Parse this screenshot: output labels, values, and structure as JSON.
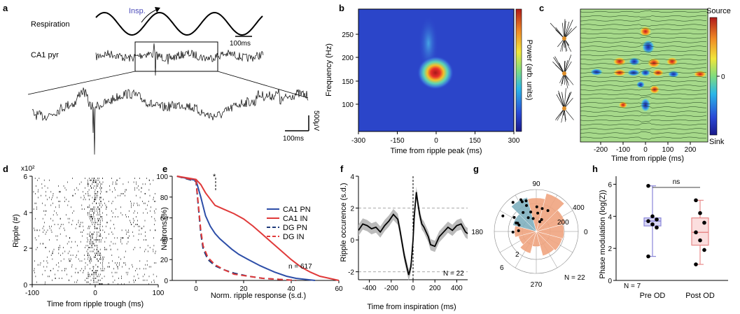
{
  "panels": {
    "a": {
      "letter": "a",
      "respiration_label": "Respiration",
      "insp_label": "Insp.",
      "ca1_label": "CA1 pyr",
      "scale_time_top": "100ms",
      "scale_time_bottom": "100ms",
      "scale_voltage": "500μV"
    },
    "b": {
      "letter": "b",
      "xlabel": "Time from ripple peak (ms)",
      "ylabel": "Frequency (Hz)",
      "colorbar_label": "Power (arb. units)",
      "xticks": [
        "-300",
        "-150",
        "0",
        "150",
        "300"
      ],
      "yticks": [
        "250",
        "200",
        "150",
        "100"
      ]
    },
    "c": {
      "letter": "c",
      "source_label": "Source",
      "sink_label": "Sink",
      "colorbar_zero": "0",
      "xlabel": "Time from ripple (ms)",
      "xticks": [
        "-200",
        "-100",
        "0",
        "100",
        "200"
      ]
    },
    "d": {
      "letter": "d",
      "multiplier": "x10²",
      "ylabel": "Ripple (#)",
      "xlabel": "Time from ripple trough (ms)",
      "xticks": [
        "-100",
        "0",
        "100"
      ],
      "yticks": [
        "6",
        "4",
        "2",
        "0"
      ]
    },
    "e": {
      "letter": "e",
      "ylabel": "Neurons (%)",
      "xlabel": "Norm. ripple response (s.d.)",
      "star": "*",
      "n_label": "n = 617",
      "xticks": [
        "0",
        "20",
        "40",
        "60"
      ],
      "yticks": [
        "100",
        "80",
        "60",
        "40",
        "20",
        "0"
      ]
    },
    "f": {
      "letter": "f",
      "ylabel": "Ripple occurence (s.d.)",
      "xlabel": "Time from inspiration (ms)",
      "n_label": "N = 22",
      "xticks": [
        "-400",
        "-200",
        "0",
        "200",
        "400"
      ],
      "yticks": [
        "4",
        "2",
        "0",
        "-2"
      ]
    },
    "g": {
      "letter": "g",
      "angle_labels": [
        "90",
        "180",
        "270",
        "0"
      ],
      "radial_labels": [
        "400",
        "200",
        "2",
        "6"
      ],
      "n_label": "N = 22"
    },
    "h": {
      "letter": "h",
      "ylabel": "Phase modulation (log(Z))",
      "ns_label": "ns",
      "n_label": "N = 7",
      "categories": [
        "Pre OD",
        "Post OD"
      ],
      "yticks": [
        "6",
        "4",
        "2",
        "0"
      ]
    }
  },
  "chart_data": [
    {
      "panel": "e",
      "type": "line",
      "xlabel": "Norm. ripple response (s.d.)",
      "ylabel": "Neurons (%)",
      "xlim": [
        -10,
        60
      ],
      "ylim": [
        0,
        100
      ],
      "series": [
        {
          "name": "CA1 PN",
          "color": "#2d4ea8",
          "dash": false,
          "x": [
            -8,
            0,
            2,
            4,
            6,
            8,
            10,
            12,
            15,
            18,
            22,
            27,
            33,
            38,
            42,
            46,
            50
          ],
          "y": [
            100,
            96,
            80,
            62,
            52,
            45,
            40,
            36,
            30,
            25,
            20,
            14,
            8,
            4,
            2,
            1,
            0
          ]
        },
        {
          "name": "CA1 IN",
          "color": "#e03a3a",
          "dash": false,
          "x": [
            -8,
            0,
            2,
            4,
            6,
            8,
            12,
            16,
            20,
            24,
            28,
            32,
            36,
            40,
            44,
            48,
            52,
            56,
            60
          ],
          "y": [
            100,
            97,
            92,
            84,
            78,
            72,
            68,
            64,
            59,
            52,
            44,
            36,
            28,
            20,
            13,
            8,
            4,
            2,
            0
          ]
        },
        {
          "name": "DG PN",
          "color": "#1f3a7a",
          "dash": true,
          "x": [
            -8,
            0,
            1,
            2,
            3,
            5,
            8,
            12,
            16,
            22,
            28,
            35,
            42
          ],
          "y": [
            100,
            95,
            70,
            45,
            30,
            20,
            14,
            10,
            7,
            4,
            2,
            1,
            0
          ]
        },
        {
          "name": "DG IN",
          "color": "#e03a3a",
          "dash": true,
          "x": [
            -8,
            0,
            1,
            2,
            3,
            5,
            8,
            12,
            16,
            22,
            28,
            35,
            42
          ],
          "y": [
            100,
            96,
            72,
            48,
            33,
            22,
            15,
            10,
            6,
            4,
            2,
            1,
            0
          ]
        }
      ]
    },
    {
      "panel": "f",
      "type": "line",
      "xlabel": "Time from inspiration (ms)",
      "ylabel": "Ripple occurence (s.d.)",
      "xlim": [
        -500,
        500
      ],
      "ylim": [
        -2.5,
        4
      ],
      "series": [
        {
          "color": "#000000",
          "x": [
            -500,
            -460,
            -420,
            -380,
            -340,
            -300,
            -260,
            -220,
            -180,
            -140,
            -120,
            -100,
            -80,
            -60,
            -40,
            -20,
            0,
            10,
            20,
            30,
            40,
            60,
            80,
            100,
            120,
            140,
            160,
            200,
            240,
            280,
            320,
            360,
            400,
            440,
            480,
            500
          ],
          "y": [
            0.6,
            1.0,
            0.9,
            0.7,
            0.8,
            0.5,
            0.9,
            1.2,
            1.6,
            1.3,
            0.6,
            -0.2,
            -1.0,
            -1.6,
            -2.2,
            -1.7,
            0.0,
            1.4,
            2.2,
            3.0,
            2.5,
            1.6,
            1.0,
            0.8,
            0.5,
            0.2,
            -0.3,
            -0.4,
            0.2,
            0.5,
            0.8,
            0.6,
            0.9,
            1.0,
            0.5,
            0.4
          ]
        }
      ]
    },
    {
      "panel": "g",
      "type": "bar",
      "subtype": "polar",
      "categories": [
        "0",
        "30",
        "60",
        "90",
        "120",
        "150",
        "180",
        "210",
        "240",
        "270",
        "300",
        "330"
      ],
      "values": [
        330,
        360,
        470,
        400,
        420,
        290,
        260,
        220,
        270,
        180,
        300,
        320
      ]
    },
    {
      "panel": "h",
      "type": "box",
      "ylabel": "Phase modulation (log(Z))",
      "categories": [
        "Pre OD",
        "Post OD"
      ],
      "ylim": [
        0,
        6.5
      ],
      "series": [
        {
          "name": "Pre OD",
          "values": [
            5.9,
            4.0,
            3.8,
            3.7,
            3.5,
            3.3,
            1.5
          ]
        },
        {
          "name": "Post OD",
          "values": [
            5.0,
            4.2,
            3.6,
            3.0,
            2.5,
            1.9,
            1.0
          ]
        }
      ]
    }
  ]
}
